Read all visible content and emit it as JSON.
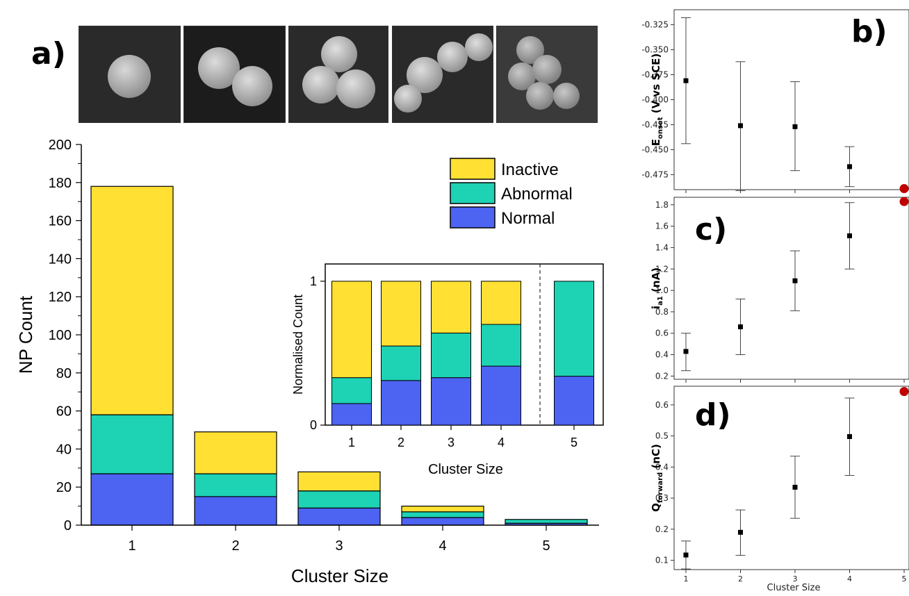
{
  "panel_labels": {
    "a": "a)",
    "b": "b)",
    "c": "c)",
    "d": "d)"
  },
  "colors": {
    "inactive": "#FFE033",
    "abnormal": "#1ED2B4",
    "normal": "#4D63F2",
    "marker": "#000000",
    "red_dot": "#C00000"
  },
  "chart_data": [
    {
      "id": "a-main",
      "type": "bar",
      "stacked": true,
      "categories": [
        "1",
        "2",
        "3",
        "4",
        "5"
      ],
      "series": [
        {
          "name": "Normal",
          "values": [
            27,
            15,
            9,
            4,
            1
          ]
        },
        {
          "name": "Abnormal",
          "values": [
            31,
            12,
            9,
            3,
            2
          ]
        },
        {
          "name": "Inactive",
          "values": [
            120,
            22,
            10,
            3,
            0
          ]
        }
      ],
      "xlabel": "Cluster Size",
      "ylabel": "NP Count",
      "ylim": [
        0,
        200
      ],
      "yticks": [
        "0",
        "20",
        "40",
        "60",
        "80",
        "100",
        "120",
        "140",
        "160",
        "180",
        "200"
      ],
      "legend": "top-right",
      "legend_order": [
        "Inactive",
        "Abnormal",
        "Normal"
      ]
    },
    {
      "id": "a-inset",
      "type": "bar",
      "stacked": true,
      "categories": [
        "1",
        "2",
        "3",
        "4",
        "5"
      ],
      "series": [
        {
          "name": "Normal",
          "values": [
            0.15,
            0.31,
            0.33,
            0.41,
            0.34
          ]
        },
        {
          "name": "Abnormal",
          "values": [
            0.18,
            0.24,
            0.31,
            0.29,
            0.66
          ]
        },
        {
          "name": "Inactive",
          "values": [
            0.67,
            0.45,
            0.36,
            0.3,
            0.0
          ]
        }
      ],
      "xlabel": "Cluster Size",
      "ylabel": "Normalised Count",
      "ylim": [
        0,
        1.12
      ],
      "yticks": [
        "0",
        "1"
      ],
      "divider_after_category": "4"
    },
    {
      "id": "b",
      "type": "scatter",
      "error_bars": true,
      "x": [
        1,
        2,
        3,
        4,
        5
      ],
      "y": [
        -0.381,
        -0.426,
        -0.427,
        -0.467,
        -0.489
      ],
      "yerr_low": [
        -0.444,
        -0.491,
        -0.471,
        -0.487,
        null
      ],
      "yerr_high": [
        -0.318,
        -0.362,
        -0.382,
        -0.447,
        null
      ],
      "ylabel_main": "E",
      "ylabel_sub": "onset",
      "ylabel_rest": " (V vs SCE)",
      "ylim": [
        -0.49,
        -0.31
      ],
      "yticks": [
        "-0.325",
        "-0.350",
        "-0.375",
        "-0.400",
        "-0.425",
        "-0.450",
        "-0.475"
      ],
      "ytick_values": [
        -0.325,
        -0.35,
        -0.375,
        -0.4,
        -0.425,
        -0.45,
        -0.475
      ],
      "outlier_x": 5
    },
    {
      "id": "c",
      "type": "scatter",
      "error_bars": true,
      "x": [
        1,
        2,
        3,
        4,
        5
      ],
      "y": [
        0.43,
        0.66,
        1.09,
        1.51,
        1.83
      ],
      "yerr_low": [
        0.25,
        0.4,
        0.81,
        1.2,
        null
      ],
      "yerr_high": [
        0.6,
        0.92,
        1.37,
        1.82,
        null
      ],
      "ylabel_main": "i",
      "ylabel_sub": "a1",
      "ylabel_rest": " (nA)",
      "ylim": [
        0.17,
        1.87
      ],
      "yticks": [
        "0.2",
        "0.4",
        "0.6",
        "0.8",
        "1.0",
        "1.2",
        "1.4",
        "1.6",
        "1.8"
      ],
      "ytick_values": [
        0.2,
        0.4,
        0.6,
        0.8,
        1.0,
        1.2,
        1.4,
        1.6,
        1.8
      ],
      "outlier_x": 5
    },
    {
      "id": "d",
      "type": "scatter",
      "error_bars": true,
      "x": [
        1,
        2,
        3,
        4,
        5
      ],
      "y": [
        0.117,
        0.19,
        0.335,
        0.498,
        0.643
      ],
      "yerr_low": [
        0.072,
        0.116,
        0.235,
        0.373,
        null
      ],
      "yerr_high": [
        0.162,
        0.262,
        0.435,
        0.622,
        null
      ],
      "ylabel_main": "Q",
      "ylabel_sub": "forward",
      "ylabel_rest": " (nC)",
      "xlabel": "Cluster Size",
      "xticks": [
        "1",
        "2",
        "3",
        "4",
        "5"
      ],
      "ylim": [
        0.07,
        0.66
      ],
      "yticks": [
        "0.1",
        "0.2",
        "0.3",
        "0.4",
        "0.5",
        "0.6"
      ],
      "ytick_values": [
        0.1,
        0.2,
        0.3,
        0.4,
        0.5,
        0.6
      ],
      "outlier_x": 5
    }
  ]
}
